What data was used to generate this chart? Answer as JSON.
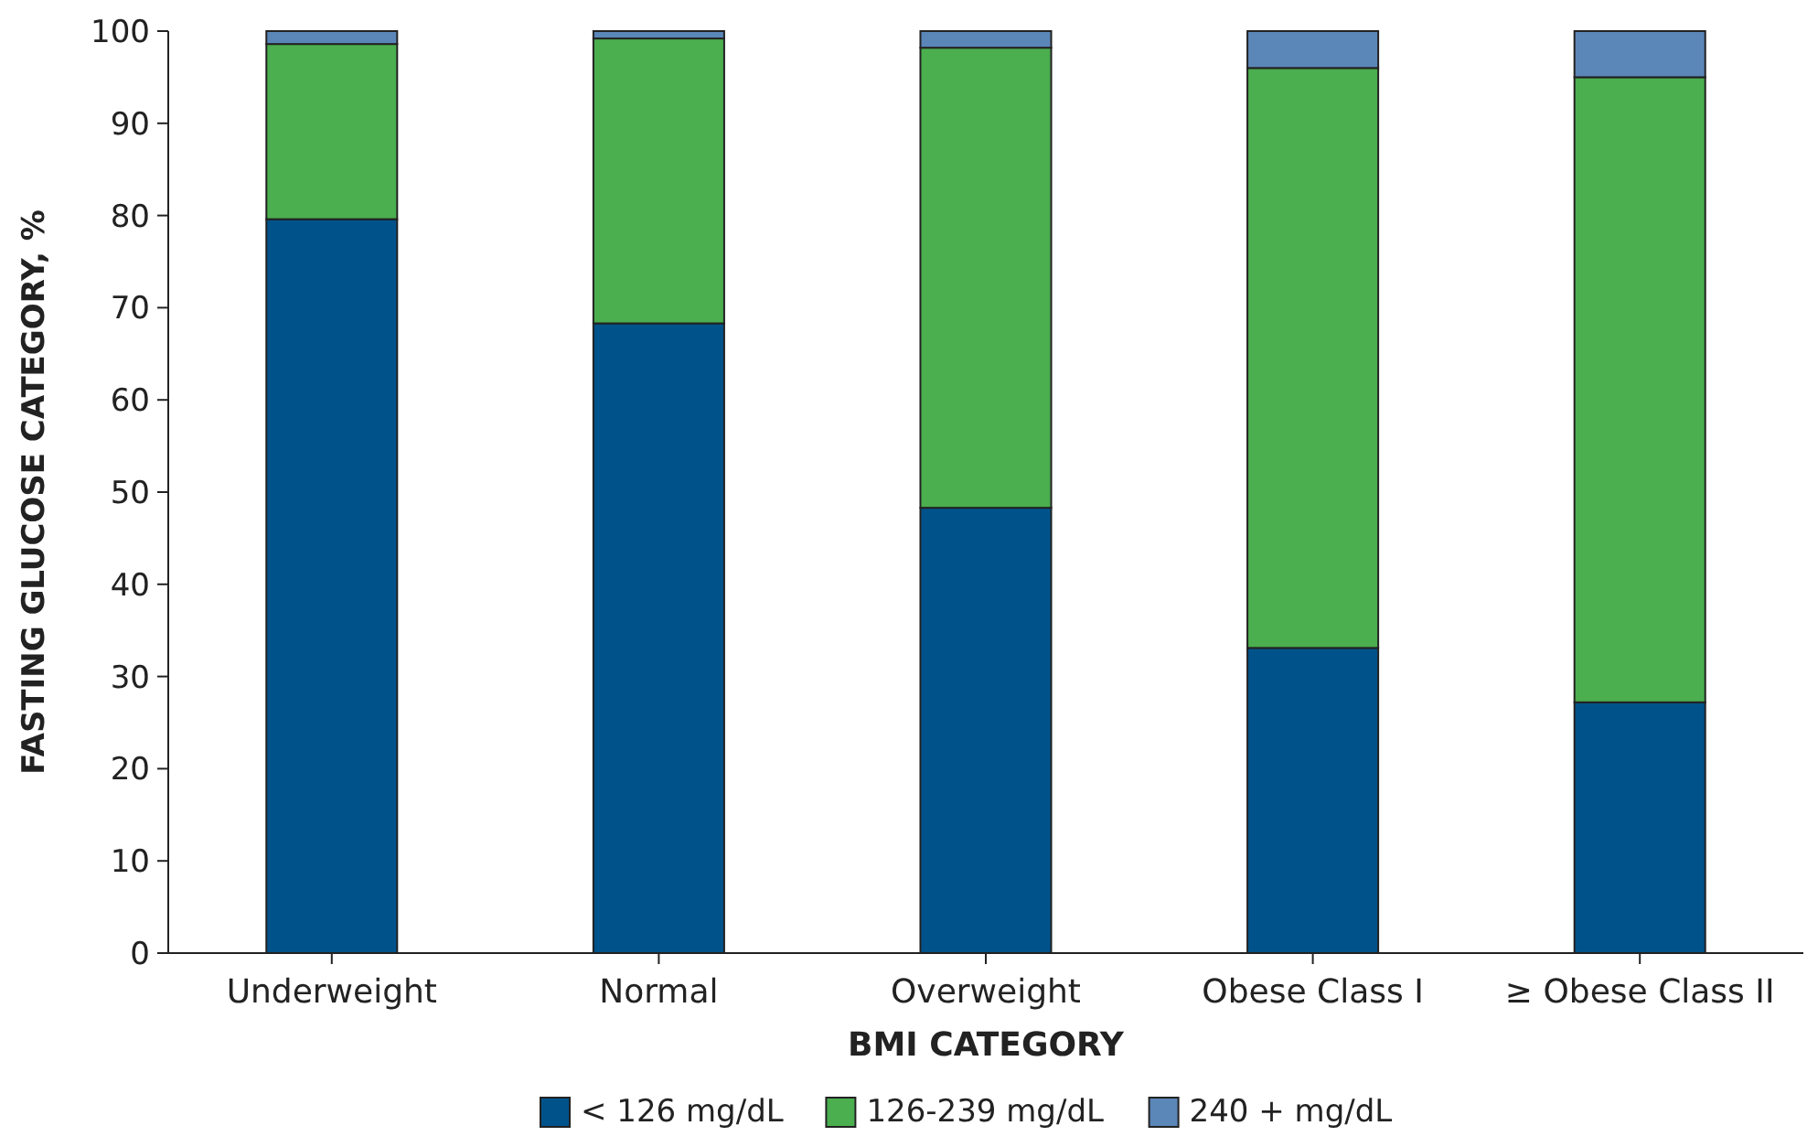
{
  "chart_data": {
    "type": "bar",
    "stacked": true,
    "xlabel": "BMI CATEGORY",
    "ylabel": "FASTING GLUCOSE CATEGORY, %",
    "categories": [
      "Underweight",
      "Normal",
      "Overweight",
      "Obese Class I",
      "≥ Obese Class II"
    ],
    "series": [
      {
        "name": "< 126 mg/dL",
        "color": "#00538a",
        "values": [
          79.6,
          68.3,
          48.3,
          33.1,
          27.2
        ]
      },
      {
        "name": "126-239 mg/dL",
        "color": "#4bae4f",
        "values": [
          19.0,
          30.9,
          49.9,
          62.9,
          67.8
        ]
      },
      {
        "name": "240 + mg/dL",
        "color": "#5b86b8",
        "values": [
          1.4,
          0.8,
          1.8,
          4.0,
          5.0
        ]
      }
    ],
    "ylim": [
      0,
      100
    ],
    "yticks": [
      0,
      10,
      20,
      30,
      40,
      50,
      60,
      70,
      80,
      90,
      100
    ],
    "grid": false,
    "legend": "bottom"
  }
}
